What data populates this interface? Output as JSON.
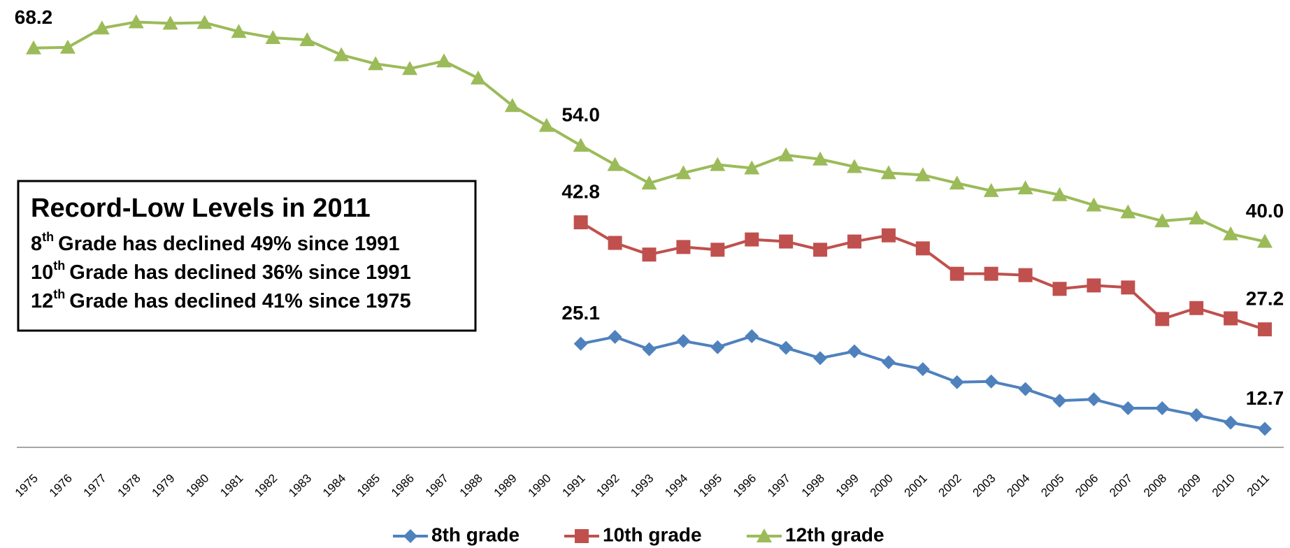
{
  "chart_data": {
    "type": "line",
    "categories": [
      "1975",
      "1976",
      "1977",
      "1978",
      "1979",
      "1980",
      "1981",
      "1982",
      "1983",
      "1984",
      "1985",
      "1986",
      "1987",
      "1988",
      "1989",
      "1990",
      "1991",
      "1992",
      "1993",
      "1994",
      "1995",
      "1996",
      "1997",
      "1998",
      "1999",
      "2000",
      "2001",
      "2002",
      "2003",
      "2004",
      "2005",
      "2006",
      "2007",
      "2008",
      "2009",
      "2010",
      "2011"
    ],
    "series": [
      {
        "name": "8th grade",
        "color": "#4f81bd",
        "marker": "diamond",
        "values": [
          null,
          null,
          null,
          null,
          null,
          null,
          null,
          null,
          null,
          null,
          null,
          null,
          null,
          null,
          null,
          null,
          25.1,
          26.1,
          24.3,
          25.5,
          24.6,
          26.2,
          24.5,
          23.0,
          24.0,
          22.4,
          21.4,
          19.5,
          19.6,
          18.5,
          16.8,
          17.0,
          15.7,
          15.7,
          14.7,
          13.6,
          12.7
        ],
        "value_labels": [
          null,
          null,
          null,
          null,
          null,
          null,
          null,
          null,
          null,
          null,
          null,
          null,
          null,
          null,
          null,
          null,
          "25.1",
          null,
          null,
          null,
          null,
          null,
          null,
          null,
          null,
          null,
          null,
          null,
          null,
          null,
          null,
          null,
          null,
          null,
          null,
          null,
          "12.7"
        ]
      },
      {
        "name": "10th grade",
        "color": "#c0504d",
        "marker": "square",
        "values": [
          null,
          null,
          null,
          null,
          null,
          null,
          null,
          null,
          null,
          null,
          null,
          null,
          null,
          null,
          null,
          null,
          42.8,
          39.8,
          38.1,
          39.2,
          38.8,
          40.3,
          40.0,
          38.8,
          40.0,
          40.9,
          39.0,
          35.3,
          35.3,
          35.1,
          33.1,
          33.6,
          33.3,
          28.7,
          30.3,
          28.8,
          27.2
        ],
        "value_labels": [
          null,
          null,
          null,
          null,
          null,
          null,
          null,
          null,
          null,
          null,
          null,
          null,
          null,
          null,
          null,
          null,
          "42.8",
          null,
          null,
          null,
          null,
          null,
          null,
          null,
          null,
          null,
          null,
          null,
          null,
          null,
          null,
          null,
          null,
          null,
          null,
          null,
          "27.2"
        ]
      },
      {
        "name": "12th grade",
        "color": "#9bbb59",
        "marker": "triangle",
        "values": [
          68.2,
          68.3,
          71.1,
          72.0,
          71.8,
          71.9,
          70.6,
          69.7,
          69.4,
          67.2,
          65.9,
          65.2,
          66.3,
          63.8,
          59.8,
          56.9,
          54.0,
          51.2,
          48.5,
          50.0,
          51.2,
          50.7,
          52.6,
          52.0,
          50.9,
          50.0,
          49.7,
          48.5,
          47.4,
          47.8,
          46.8,
          45.3,
          44.3,
          43.0,
          43.4,
          41.1,
          40.0
        ],
        "value_labels": [
          "68.2",
          null,
          null,
          null,
          null,
          null,
          null,
          null,
          null,
          null,
          null,
          null,
          null,
          null,
          null,
          null,
          "54.0",
          null,
          null,
          null,
          null,
          null,
          null,
          null,
          null,
          null,
          null,
          null,
          null,
          null,
          null,
          null,
          null,
          null,
          null,
          null,
          "40.0"
        ]
      }
    ],
    "ylim": [
      10,
      75
    ],
    "grid": false,
    "legend": "bottom",
    "annotation": {
      "title": "Record-Low Levels in 2011",
      "lines": [
        {
          "ordinal": "8",
          "suffix": "th",
          "text": "Grade has declined 49% since 1991"
        },
        {
          "ordinal": "10",
          "suffix": "th",
          "text": "Grade has declined 36% since 1991"
        },
        {
          "ordinal": "12",
          "suffix": "th",
          "text": "Grade has declined 41% since 1975"
        }
      ]
    }
  }
}
